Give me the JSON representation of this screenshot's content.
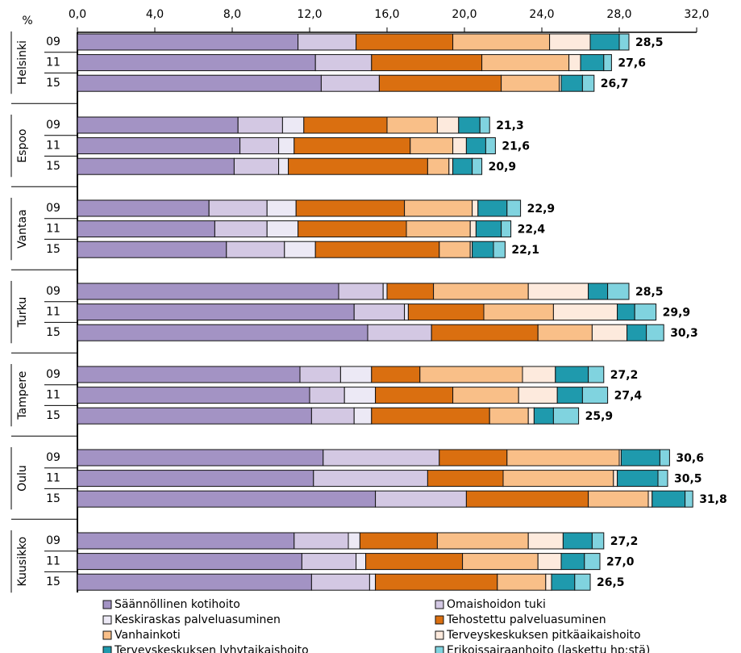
{
  "chart_data": {
    "type": "stacked-barh",
    "y_unit": "%",
    "groups": [
      "Helsinki",
      "Espoo",
      "Vantaa",
      "Turku",
      "Tampere",
      "Oulu",
      "Kuusikko"
    ],
    "categories": [
      "09",
      "11",
      "15",
      "09",
      "11",
      "15",
      "09",
      "11",
      "15",
      "09",
      "11",
      "15",
      "09",
      "11",
      "15",
      "09",
      "11",
      "15",
      "09",
      "11",
      "15"
    ],
    "xlim": [
      0,
      32
    ],
    "xticks": [
      {
        "value": 0,
        "label": "0,0"
      },
      {
        "value": 4,
        "label": "4,0"
      },
      {
        "value": 8,
        "label": "8,0"
      },
      {
        "value": 12,
        "label": "12,0"
      },
      {
        "value": 16,
        "label": "16,0"
      },
      {
        "value": 20,
        "label": "20,0"
      },
      {
        "value": 24,
        "label": "24,0"
      },
      {
        "value": 28,
        "label": "28,0"
      },
      {
        "value": 32,
        "label": "32,0"
      }
    ],
    "series": [
      {
        "name": "Säännöllinen kotihoito",
        "color": "#a393c4",
        "values": [
          11.4,
          12.3,
          12.6,
          8.3,
          8.4,
          8.1,
          6.8,
          7.1,
          7.7,
          13.5,
          14.3,
          15.0,
          11.5,
          12.0,
          12.1,
          12.7,
          12.2,
          15.4,
          11.2,
          11.6,
          12.1
        ]
      },
      {
        "name": "Omaishoidon tuki",
        "color": "#d3c8e3",
        "values": [
          3.0,
          2.9,
          3.0,
          2.3,
          2.0,
          2.3,
          3.0,
          2.7,
          3.0,
          2.3,
          2.6,
          3.3,
          2.1,
          1.8,
          2.2,
          6.0,
          5.9,
          4.7,
          2.8,
          2.8,
          3.0
        ]
      },
      {
        "name": "Keskiraskas palveluasuminen",
        "color": "#ece9f5",
        "values": [
          0,
          0,
          0,
          1.1,
          0.8,
          0.5,
          1.5,
          1.6,
          1.6,
          0.2,
          0.2,
          0,
          1.6,
          1.6,
          0.9,
          0,
          0,
          0,
          0.6,
          0.5,
          0.3
        ]
      },
      {
        "name": "Tehostettu palveluasuminen",
        "color": "#da6f10",
        "values": [
          5.0,
          5.7,
          6.3,
          4.3,
          6.0,
          7.2,
          5.6,
          5.6,
          6.4,
          2.4,
          3.9,
          5.5,
          2.5,
          4.0,
          6.1,
          3.5,
          3.9,
          6.3,
          4.0,
          5.0,
          6.3
        ]
      },
      {
        "name": "Vanhainkoti",
        "color": "#f9bf88",
        "values": [
          5.0,
          4.5,
          3.0,
          2.6,
          2.2,
          1.1,
          3.5,
          3.3,
          1.6,
          4.9,
          3.6,
          2.8,
          5.3,
          3.4,
          2.0,
          5.8,
          5.7,
          3.1,
          4.7,
          3.9,
          2.5
        ]
      },
      {
        "name": "Terveyskeskuksen pitkäaikaishoito",
        "color": "#fdeadd",
        "values": [
          2.1,
          0.6,
          0.1,
          1.1,
          0.7,
          0.2,
          0.3,
          0.3,
          0.1,
          3.1,
          3.3,
          1.8,
          1.7,
          2.0,
          0.3,
          0.1,
          0.2,
          0.2,
          1.8,
          1.2,
          0.3
        ]
      },
      {
        "name": "Terveyskeskuksen lyhytaikaishoito",
        "color": "#1f9aad",
        "values": [
          1.5,
          1.2,
          1.1,
          1.1,
          1.0,
          1.0,
          1.5,
          1.3,
          1.1,
          1.0,
          0.9,
          1.0,
          1.7,
          1.3,
          1.0,
          2.0,
          2.1,
          1.7,
          1.5,
          1.2,
          1.2
        ]
      },
      {
        "name": "Erikoissairaanhoito (laskettu hp:stä)",
        "color": "#80d3df",
        "values": [
          0.5,
          0.4,
          0.6,
          0.5,
          0.5,
          0.5,
          0.7,
          0.5,
          0.6,
          1.1,
          1.1,
          0.9,
          0.8,
          1.3,
          1.3,
          0.5,
          0.5,
          0.4,
          0.6,
          0.8,
          0.8
        ]
      }
    ],
    "totals": {
      "values": [
        28.5,
        27.6,
        26.7,
        21.3,
        21.6,
        20.9,
        22.9,
        22.4,
        22.1,
        28.5,
        29.9,
        30.3,
        27.2,
        27.4,
        25.9,
        30.6,
        30.5,
        31.8,
        27.2,
        27.0,
        26.5
      ],
      "value_labels": [
        "28,5",
        "27,6",
        "26,7",
        "21,3",
        "21,6",
        "20,9",
        "22,9",
        "22,4",
        "22,1",
        "28,5",
        "29,9",
        "30,3",
        "27,2",
        "27,4",
        "25,9",
        "30,6",
        "30,5",
        "31,8",
        "27,2",
        "27,0",
        "26,5"
      ]
    }
  }
}
